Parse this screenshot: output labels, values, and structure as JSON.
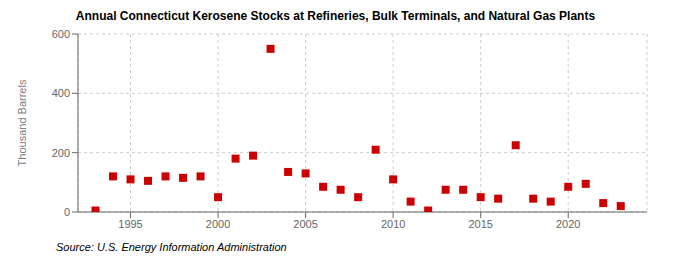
{
  "chart_data": {
    "type": "scatter",
    "title": "Annual Connecticut Kerosene Stocks at Refineries, Bulk Terminals, and Natural Gas Plants",
    "ylabel": "Thousand Barrels",
    "annotations": [
      "Source: U.S. Energy Information Administration"
    ],
    "x": [
      1993,
      1994,
      1995,
      1996,
      1997,
      1998,
      1999,
      2000,
      2001,
      2002,
      2003,
      2004,
      2005,
      2006,
      2007,
      2008,
      2009,
      2010,
      2011,
      2012,
      2013,
      2014,
      2015,
      2016,
      2017,
      2018,
      2019,
      2020,
      2021,
      2022,
      2023
    ],
    "values": [
      5,
      120,
      110,
      105,
      120,
      115,
      120,
      50,
      180,
      190,
      550,
      135,
      130,
      85,
      75,
      50,
      210,
      110,
      35,
      5,
      75,
      75,
      50,
      45,
      225,
      45,
      35,
      85,
      95,
      30,
      20
    ],
    "color": "#cc0000",
    "marker": "square",
    "grid": true,
    "xlim": [
      1992,
      2024.5
    ],
    "xticks": [
      1995,
      2000,
      2005,
      2010,
      2015,
      2020
    ],
    "ylim": [
      0,
      600
    ],
    "yticks": [
      0,
      200,
      400,
      600
    ]
  }
}
